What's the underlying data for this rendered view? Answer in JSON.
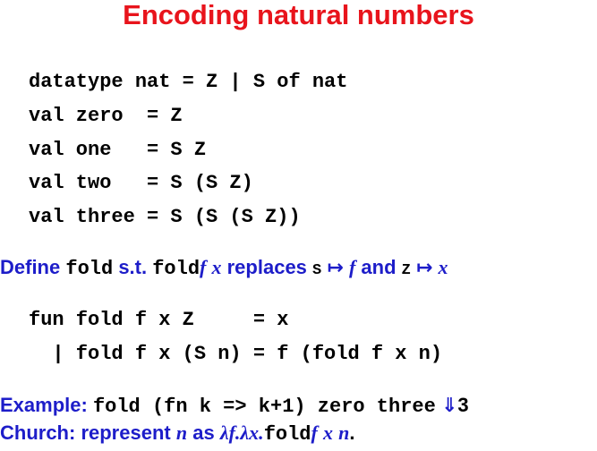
{
  "title": "Encoding natural numbers",
  "code_block_1": [
    "datatype nat = Z | S of nat",
    "val zero  = Z",
    "val one   = S Z",
    "val two   = S (S Z)",
    "val three = S (S (S Z))"
  ],
  "define_line": {
    "word_define": "Define",
    "code_fold_1": "fold",
    "word_st": "s.t.",
    "code_fold_2": "fold",
    "var_f1": "f",
    "var_x1": "x",
    "word_replaces": "replaces",
    "code_S": "S",
    "mapsto_1": "↦",
    "var_f2": "f",
    "word_and": "and",
    "code_Z": "Z",
    "mapsto_2": "↦",
    "var_x2": "x"
  },
  "code_block_2": [
    "fun fold f x Z     = x",
    "  | fold f x (S n) = f (fold f x n)"
  ],
  "example_line": {
    "label": "Example:",
    "code": "fold (fn k => k+1) zero three",
    "arrow": "⇓",
    "result": "3"
  },
  "church_line": {
    "label": "Church: represent",
    "var_n1": "n",
    "word_as": "as",
    "lambda_f": "λf.",
    "lambda_x": "λx.",
    "code_fold": "fold",
    "var_f": "f",
    "var_x": "x",
    "var_n2": "n",
    "period": "."
  }
}
